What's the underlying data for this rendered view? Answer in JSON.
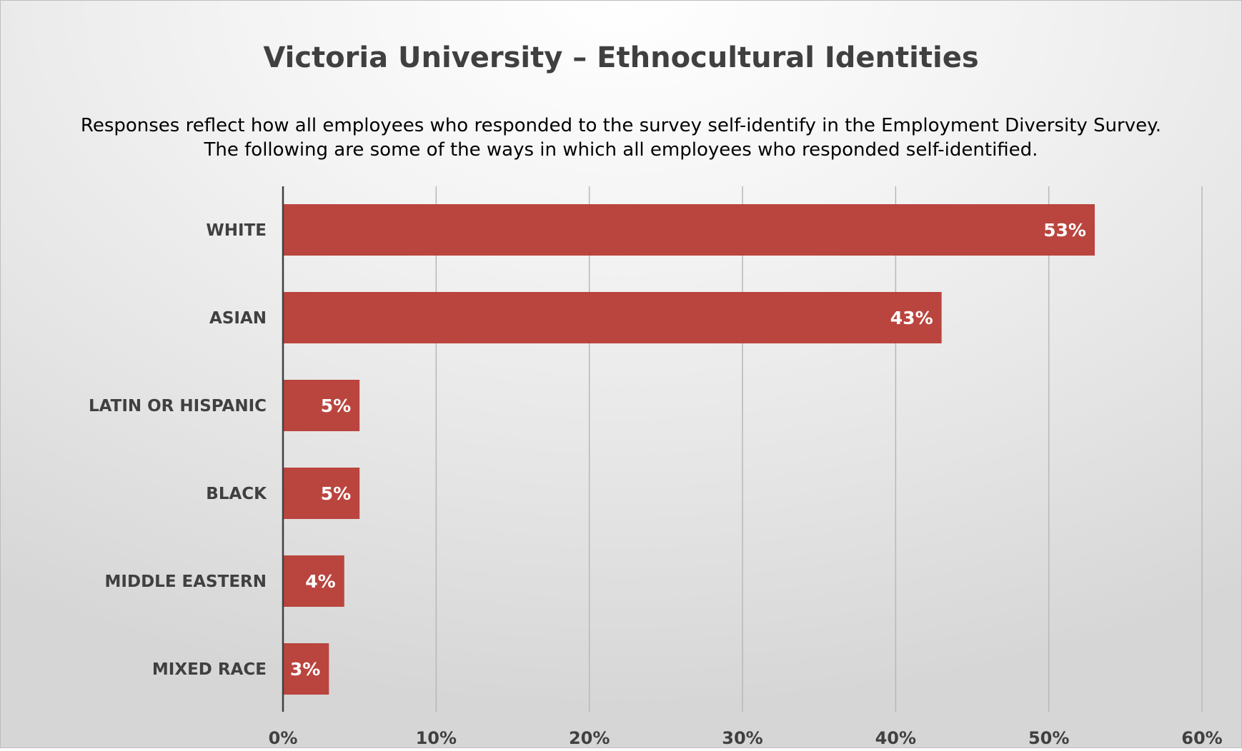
{
  "chart_data": {
    "type": "bar",
    "orientation": "horizontal",
    "title": "Victoria University – Ethnocultural Identities",
    "subtitle": [
      "Responses reflect how all employees who responded to the survey self-identify in the Employment Diversity Survey.",
      "The following are some of the ways in which all employees who responded self-identified."
    ],
    "categories": [
      "WHITE",
      "ASIAN",
      "LATIN OR HISPANIC",
      "BLACK",
      "MIDDLE EASTERN",
      "MIXED RACE"
    ],
    "values": [
      53,
      43,
      5,
      5,
      4,
      3
    ],
    "data_labels": [
      "53%",
      "43%",
      "5%",
      "5%",
      "4%",
      "3%"
    ],
    "xlim": [
      0,
      60
    ],
    "x_ticks": [
      "0%",
      "10%",
      "20%",
      "30%",
      "40%",
      "50%",
      "60%"
    ],
    "grid": true,
    "legend": "none",
    "bar_color": "#b9413a",
    "text_color": "#404040"
  }
}
